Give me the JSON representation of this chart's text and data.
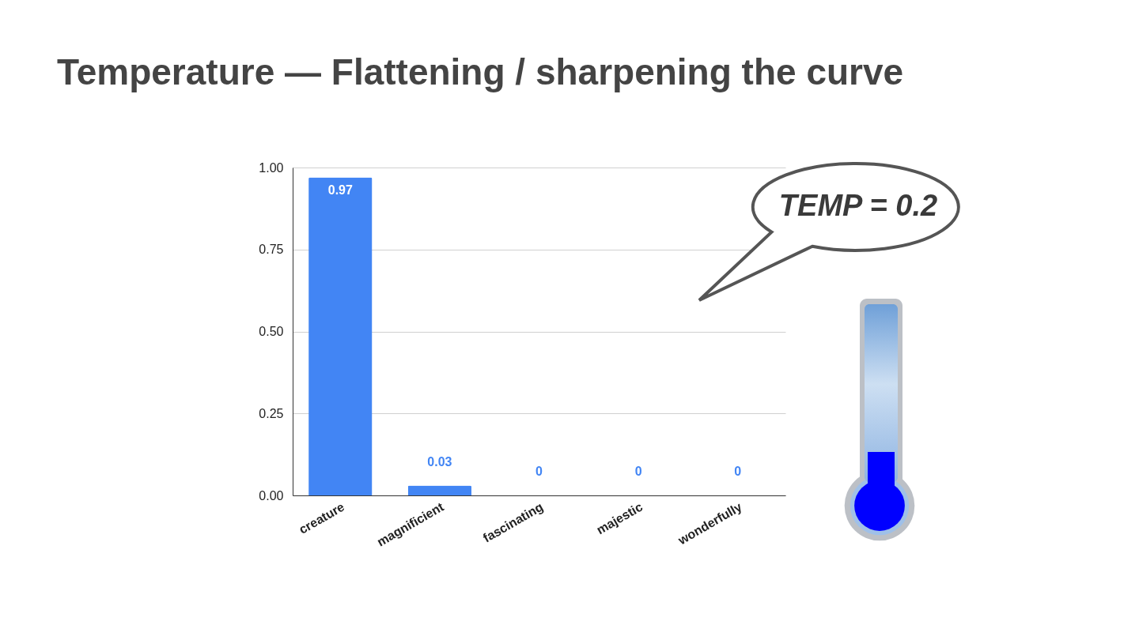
{
  "chart_data": {
    "type": "bar",
    "title": "Temperature — Flattening / sharpening the curve",
    "categories": [
      "creature",
      "magnificient",
      "fascinating",
      "majestic",
      "wonderfully"
    ],
    "values": [
      0.97,
      0.03,
      0,
      0,
      0
    ],
    "color": "#4285f4",
    "ylim": [
      0,
      1
    ],
    "yticks": [
      {
        "value": 0,
        "label": "0.00"
      },
      0.25,
      {
        "value": 0.5,
        "label": "0.50"
      },
      0.75,
      {
        "value": 1,
        "label": "1.00"
      }
    ],
    "grid": "y",
    "data_labels": true,
    "annotations": [
      "TEMP = 0.2"
    ]
  }
}
